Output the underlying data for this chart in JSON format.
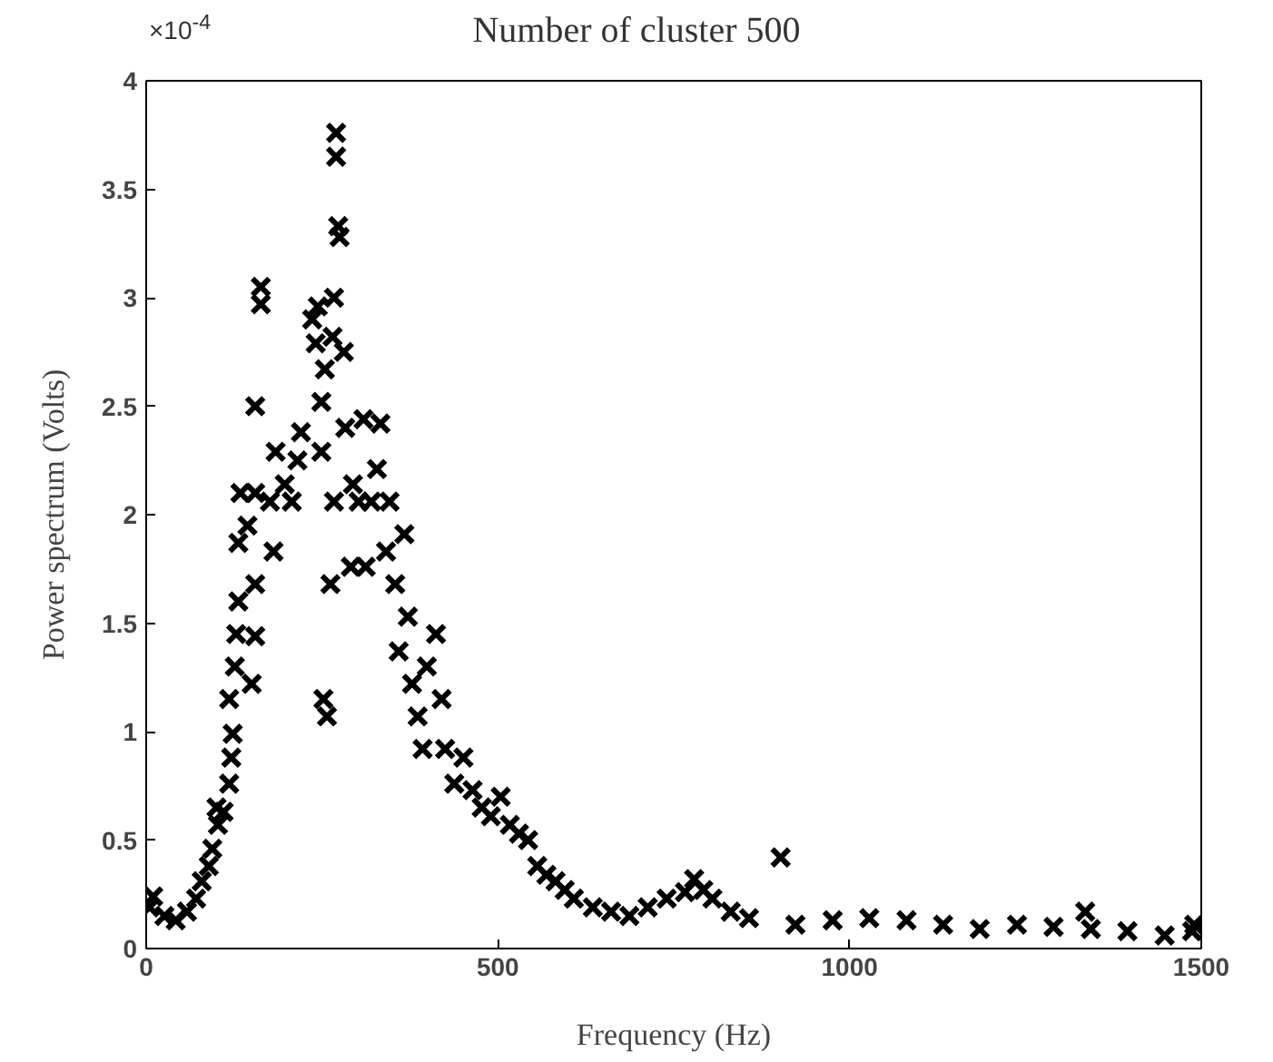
{
  "chart_data": {
    "type": "scatter",
    "title": "Number of cluster 500",
    "xlabel": "Frequency (Hz)",
    "ylabel": "Power spectrum (Volts)",
    "annotations": [
      "×10$^{-4}$"
    ],
    "marker": "cross",
    "grid": false,
    "xlim": [
      0,
      1500
    ],
    "xticks": [
      0,
      500,
      1000,
      1500
    ],
    "ylim": [
      0,
      4
    ],
    "yticks": [
      0,
      0.5,
      1,
      1.5,
      2,
      2.5,
      3,
      3.5,
      4
    ],
    "series": [
      {
        "color": "#000000",
        "x": [
          5,
          10,
          26,
          42,
          58,
          71,
          79,
          89,
          94,
          102,
          100,
          110,
          118,
          121,
          123,
          118,
          126,
          128,
          131,
          131,
          134,
          144,
          155,
          150,
          155,
          155,
          155,
          163,
          163,
          176,
          181,
          184,
          197,
          207,
          215,
          220,
          236,
          244,
          241,
          249,
          254,
          249,
          252,
          257,
          262,
          267,
          265,
          267,
          270,
          270,
          273,
          275,
          281,
          283,
          291,
          294,
          302,
          309,
          312,
          320,
          328,
          333,
          341,
          346,
          354,
          359,
          367,
          372,
          378,
          386,
          393,
          399,
          412,
          420,
          425,
          438,
          451,
          464,
          477,
          490,
          504,
          517,
          530,
          543,
          556,
          569,
          582,
          595,
          608,
          635,
          661,
          687,
          713,
          740,
          766,
          792,
          779,
          805,
          831,
          857,
          902,
          923,
          976,
          1028,
          1081,
          1133,
          1185,
          1238,
          1290,
          1343,
          1335,
          1395,
          1448,
          1487,
          1490
        ],
        "values": [
          0.19,
          0.24,
          0.15,
          0.13,
          0.17,
          0.23,
          0.31,
          0.38,
          0.46,
          0.57,
          0.65,
          0.63,
          0.76,
          0.88,
          0.99,
          1.15,
          1.3,
          1.45,
          1.6,
          1.87,
          2.1,
          1.95,
          1.68,
          1.22,
          1.44,
          2.1,
          2.5,
          3.05,
          2.97,
          2.06,
          1.83,
          2.29,
          2.14,
          2.06,
          2.25,
          2.38,
          2.9,
          2.96,
          2.79,
          2.29,
          2.67,
          2.52,
          1.15,
          1.07,
          1.68,
          2.06,
          2.82,
          3.0,
          3.65,
          3.76,
          3.33,
          3.28,
          2.75,
          2.4,
          1.76,
          2.14,
          2.06,
          2.44,
          1.76,
          2.06,
          2.21,
          2.42,
          1.83,
          2.06,
          1.68,
          1.37,
          1.91,
          1.53,
          1.22,
          1.07,
          0.92,
          1.3,
          1.45,
          1.15,
          0.92,
          0.76,
          0.88,
          0.73,
          0.65,
          0.61,
          0.7,
          0.57,
          0.53,
          0.5,
          0.38,
          0.34,
          0.31,
          0.27,
          0.23,
          0.19,
          0.17,
          0.15,
          0.19,
          0.23,
          0.26,
          0.27,
          0.32,
          0.23,
          0.17,
          0.14,
          0.42,
          0.11,
          0.13,
          0.14,
          0.13,
          0.11,
          0.09,
          0.11,
          0.1,
          0.09,
          0.17,
          0.08,
          0.06,
          0.08,
          0.11
        ]
      }
    ]
  }
}
